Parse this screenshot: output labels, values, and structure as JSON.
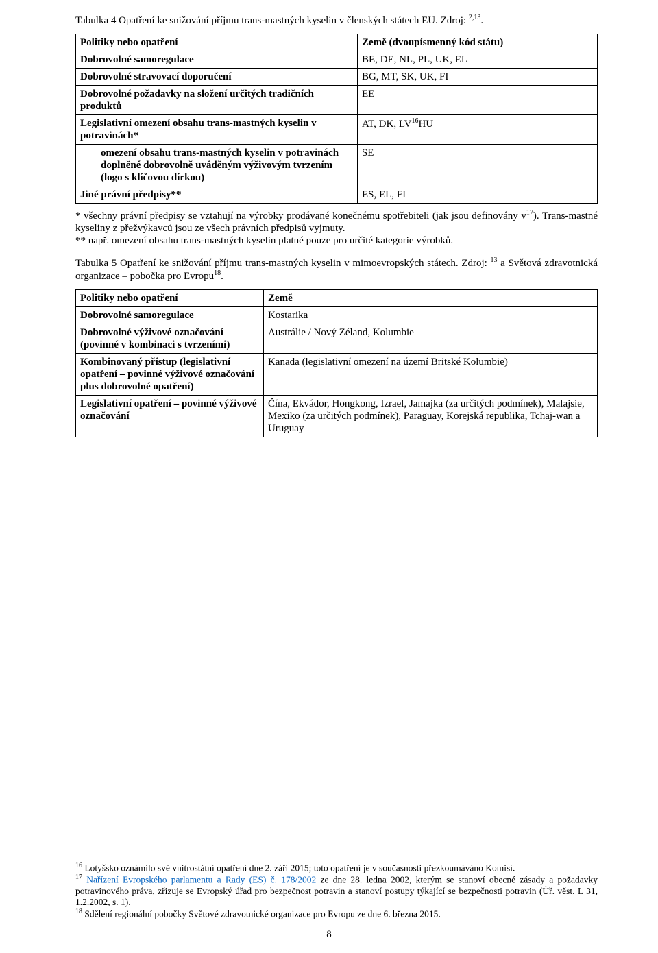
{
  "table4": {
    "caption_pre": "Tabulka 4 Opatření ke snižování příjmu trans-mastných kyselin v členských státech EU. Zdroj: ",
    "caption_sup": "2,13",
    "caption_post": ".",
    "header_left": "Politiky nebo opatření",
    "header_right": "Země (dvoupísmenný kód státu)",
    "rows": [
      {
        "left": "Dobrovolné samoregulace",
        "right": "BE, DE, NL, PL, UK, EL",
        "bold": true,
        "indent": false
      },
      {
        "left": "Dobrovolné stravovací doporučení",
        "right": "BG, MT, SK, UK, FI",
        "bold": true,
        "indent": false
      },
      {
        "left": "Dobrovolné požadavky na složení určitých tradičních produktů",
        "right": "EE",
        "bold": true,
        "indent": false
      },
      {
        "left": "Legislativní omezení obsahu trans-mastných kyselin v potravinách*",
        "right_pre": "AT, DK, LV",
        "right_sup": "16",
        "right_post": "HU",
        "bold": true,
        "indent": false
      },
      {
        "left": "omezení obsahu trans-mastných kyselin v potravinách doplněné dobrovolně uváděným výživovým tvrzením (logo s klíčovou dírkou)",
        "right": "SE",
        "bold": true,
        "indent": true
      },
      {
        "left": "Jiné právní předpisy**",
        "right": "ES, EL, FI",
        "bold": true,
        "indent": false
      }
    ],
    "note1_pre": "*   všechny právní předpisy se vztahují na výrobky prodávané konečnému spotřebiteli (jak jsou definovány v",
    "note1_sup": "17",
    "note1_post": "). Trans-mastné kyseliny z přežvýkavců jsou ze všech právních předpisů vyjmuty.",
    "note2": "** např. omezení obsahu trans-mastných kyselin platné pouze pro určité kategorie výrobků."
  },
  "table5": {
    "caption_pre": "Tabulka 5 Opatření ke snižování příjmu trans-mastných kyselin v mimoevropských státech. Zdroj: ",
    "caption_sup1": "13",
    "caption_mid": " a Světová zdravotnická organizace – pobočka pro Evropu",
    "caption_sup2": "18",
    "caption_post": ".",
    "header_left": "Politiky nebo opatření",
    "header_right": "Země",
    "rows": [
      {
        "left": "Dobrovolné samoregulace",
        "right": "Kostarika"
      },
      {
        "left": "Dobrovolné výživové označování (povinné v kombinaci s tvrzeními)",
        "right": "Austrálie / Nový Zéland, Kolumbie"
      },
      {
        "left": "Kombinovaný přístup (legislativní opatření – povinné výživové označování plus dobrovolné opatření)",
        "right": "Kanada (legislativní omezení na území Britské Kolumbie)"
      },
      {
        "left": "Legislativní opatření – povinné výživové označování",
        "right": "Čína, Ekvádor, Hongkong, Izrael, Jamajka (za určitých podmínek), Malajsie, Mexiko (za určitých podmínek), Paraguay, Korejská republika, Tchaj-wan a Uruguay"
      }
    ]
  },
  "footnotes": {
    "f16_sup": "16",
    "f16": " Lotyšsko oznámilo své vnitrostátní opatření dne 2. září 2015; toto opatření je v současnosti přezkoumáváno Komisí.",
    "f17_sup": "17",
    "f17_link": "Nařízení Evropského parlamentu a Rady (ES) č. 178/2002 ",
    "f17_rest": "ze dne 28. ledna 2002, kterým se stanoví obecné zásady a požadavky potravinového práva, zřizuje se Evropský úřad pro bezpečnost potravin a stanoví postupy týkající se bezpečnosti potravin (Úř. věst. L 31, 1.2.2002, s. 1).",
    "f18_sup": "18",
    "f18": " Sdělení regionální pobočky Světové zdravotnické organizace pro Evropu ze dne 6. března 2015."
  },
  "pagenum": "8"
}
